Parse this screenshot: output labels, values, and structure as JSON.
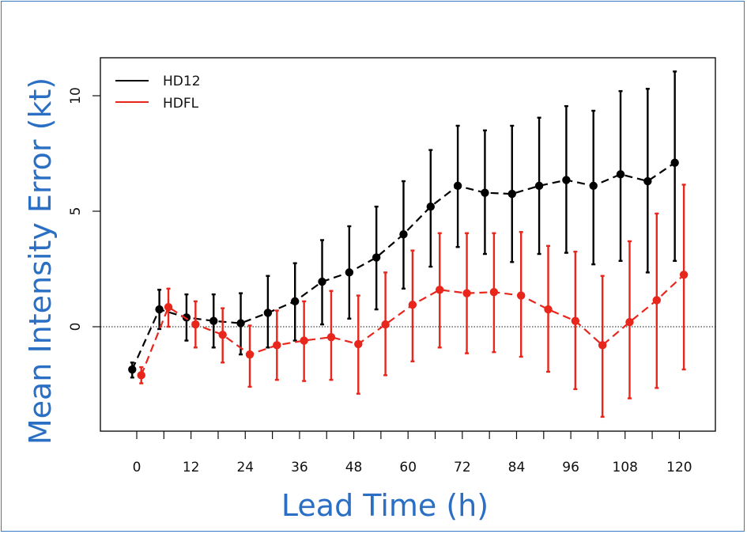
{
  "chart_data": {
    "type": "line",
    "title": "",
    "xlabel": "Lead Time (h)",
    "ylabel": "Mean Intensity Error (kt)",
    "xlim": [
      -3,
      125
    ],
    "ylim": [
      -4.5,
      11.5
    ],
    "x_ticks": [
      0,
      12,
      24,
      36,
      48,
      60,
      72,
      84,
      96,
      108,
      120
    ],
    "x_tick_labels": [
      "0",
      "12",
      "24",
      "36",
      "48",
      "60",
      "72",
      "84",
      "96",
      "108",
      "120"
    ],
    "y_ticks": [
      0,
      5,
      10
    ],
    "y_tick_labels": [
      "0",
      "5",
      "10"
    ],
    "minor_x_ticks": [
      6,
      18,
      30,
      42,
      54,
      66,
      78,
      90,
      102,
      114
    ],
    "reference_line": 0,
    "grid": false,
    "legend_position": "top-left",
    "series": [
      {
        "name": "HD12",
        "color": "#000000",
        "x": [
          -1,
          5,
          11,
          17,
          23,
          29,
          35,
          41,
          47,
          53,
          59,
          65,
          71,
          77,
          83,
          89,
          95,
          101,
          107,
          113,
          119
        ],
        "y": [
          -1.85,
          0.75,
          0.4,
          0.25,
          0.15,
          0.6,
          1.1,
          1.95,
          2.35,
          3.0,
          4.0,
          5.2,
          6.1,
          5.8,
          5.75,
          6.1,
          6.35,
          6.1,
          6.6,
          6.3,
          7.1
        ],
        "err_low": [
          -2.2,
          -0.1,
          -0.6,
          -0.9,
          -1.2,
          -0.9,
          -0.6,
          0.1,
          0.35,
          0.75,
          1.65,
          2.6,
          3.45,
          3.15,
          2.8,
          3.15,
          3.2,
          2.7,
          2.85,
          2.35,
          2.85
        ],
        "err_high": [
          -1.55,
          1.6,
          1.4,
          1.4,
          1.45,
          2.2,
          2.75,
          3.75,
          4.35,
          5.2,
          6.3,
          7.65,
          8.7,
          8.5,
          8.7,
          9.05,
          9.55,
          9.35,
          10.2,
          10.3,
          11.05
        ]
      },
      {
        "name": "HDFL",
        "color": "#e8261c",
        "x": [
          1,
          7,
          13,
          19,
          25,
          31,
          37,
          43,
          49,
          55,
          61,
          67,
          73,
          79,
          85,
          91,
          97,
          103,
          109,
          115,
          121
        ],
        "y": [
          -2.1,
          0.85,
          0.1,
          -0.35,
          -1.2,
          -0.8,
          -0.6,
          -0.45,
          -0.75,
          0.1,
          0.95,
          1.6,
          1.45,
          1.5,
          1.35,
          0.75,
          0.25,
          -0.8,
          0.2,
          1.15,
          2.25
        ],
        "err_low": [
          -2.45,
          0.0,
          -0.9,
          -1.55,
          -2.6,
          -2.3,
          -2.35,
          -2.3,
          -2.9,
          -2.1,
          -1.5,
          -0.9,
          -1.15,
          -1.1,
          -1.3,
          -1.95,
          -2.7,
          -3.9,
          -3.1,
          -2.65,
          -1.85
        ],
        "err_high": [
          -1.75,
          1.65,
          1.1,
          0.8,
          0.05,
          0.7,
          1.1,
          1.55,
          1.35,
          2.35,
          3.3,
          4.05,
          4.05,
          4.05,
          4.1,
          3.5,
          3.25,
          2.2,
          3.7,
          4.9,
          6.15
        ]
      }
    ]
  }
}
